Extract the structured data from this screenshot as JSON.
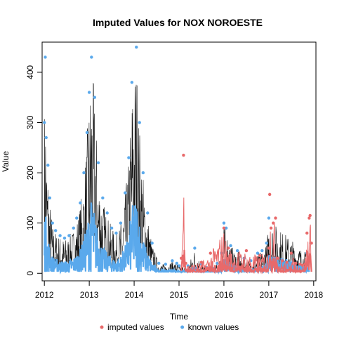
{
  "chart_data": {
    "type": "line",
    "title": "Imputed Values for  NOX NOROESTE",
    "xlabel": "Time",
    "ylabel": "Value",
    "x_ticks": [
      "2012",
      "2013",
      "2014",
      "2015",
      "2016",
      "2017",
      "2018"
    ],
    "y_ticks": [
      0,
      100,
      200,
      300,
      400
    ],
    "xlim": [
      2011.95,
      2018.05
    ],
    "ylim": [
      -15,
      460
    ],
    "legend_position": "bottom",
    "series": [
      {
        "name": "known values",
        "color": "#5aa9ec",
        "x": [
          2012.0,
          2012.02,
          2012.04,
          2012.08,
          2012.12,
          2012.18,
          2012.25,
          2012.35,
          2012.45,
          2012.55,
          2012.65,
          2012.72,
          2012.8,
          2012.88,
          2012.95,
          2013.0,
          2013.05,
          2013.12,
          2013.2,
          2013.3,
          2013.4,
          2013.5,
          2013.6,
          2013.7,
          2013.8,
          2013.88,
          2013.95,
          2014.05,
          2014.12,
          2014.2,
          2014.3,
          2014.4,
          2014.55,
          2014.7,
          2014.85,
          2014.95,
          2015.0,
          2015.2,
          2015.35,
          2015.5,
          2015.6,
          2015.75,
          2015.85,
          2015.95,
          2016.0,
          2016.05,
          2016.15,
          2016.3,
          2016.45,
          2016.6,
          2016.75,
          2016.85,
          2016.95,
          2017.0,
          2017.85,
          2017.9
        ],
        "y": [
          300,
          430,
          270,
          215,
          150,
          100,
          85,
          75,
          70,
          75,
          90,
          110,
          140,
          200,
          280,
          360,
          430,
          350,
          220,
          150,
          120,
          90,
          80,
          100,
          160,
          230,
          380,
          450,
          300,
          200,
          120,
          60,
          20,
          18,
          25,
          20,
          15,
          15,
          50,
          18,
          12,
          10,
          20,
          40,
          100,
          90,
          55,
          45,
          30,
          25,
          40,
          45,
          60,
          110,
          40,
          30
        ]
      },
      {
        "name": "imputed values",
        "color": "#e8696a",
        "x": [
          2015.05,
          2015.1,
          2015.15,
          2015.5,
          2015.7,
          2016.0,
          2016.1,
          2016.5,
          2016.8,
          2017.0,
          2017.02,
          2017.05,
          2017.1,
          2017.15,
          2017.2,
          2017.3,
          2017.4,
          2017.5,
          2017.6,
          2017.7,
          2017.75,
          2017.8,
          2017.85,
          2017.9,
          2017.92,
          2017.95
        ],
        "y": [
          30,
          235,
          20,
          22,
          40,
          90,
          50,
          45,
          35,
          50,
          157,
          90,
          100,
          110,
          30,
          25,
          22,
          40,
          20,
          18,
          16,
          18,
          80,
          110,
          115,
          60
        ]
      }
    ]
  }
}
